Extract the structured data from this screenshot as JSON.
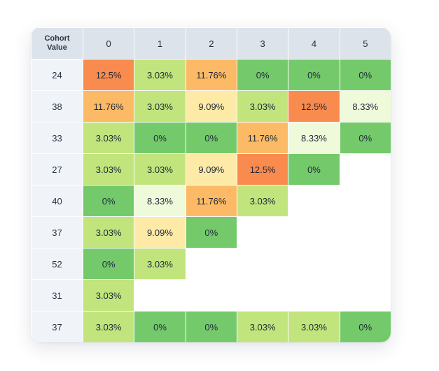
{
  "chart_data": {
    "type": "heatmap",
    "corner_label": [
      "Cohort",
      "Value"
    ],
    "columns": [
      "0",
      "1",
      "2",
      "3",
      "4",
      "5"
    ],
    "rows": [
      {
        "label": "24",
        "values": [
          "12.5%",
          "3.03%",
          "11.76%",
          "0%",
          "0%",
          "0%"
        ]
      },
      {
        "label": "38",
        "values": [
          "11.76%",
          "3.03%",
          "9.09%",
          "3.03%",
          "12.5%",
          "8.33%"
        ]
      },
      {
        "label": "33",
        "values": [
          "3.03%",
          "0%",
          "0%",
          "11.76%",
          "8.33%",
          "0%"
        ]
      },
      {
        "label": "27",
        "values": [
          "3.03%",
          "3.03%",
          "9.09%",
          "12.5%",
          "0%",
          null
        ]
      },
      {
        "label": "40",
        "values": [
          "0%",
          "8.33%",
          "11.76%",
          "3.03%",
          null,
          null
        ]
      },
      {
        "label": "37",
        "values": [
          "3.03%",
          "9.09%",
          "0%",
          null,
          null,
          null
        ]
      },
      {
        "label": "52",
        "values": [
          "0%",
          "3.03%",
          null,
          null,
          null,
          null
        ]
      },
      {
        "label": "31",
        "values": [
          "3.03%",
          null,
          null,
          null,
          null,
          null
        ]
      },
      {
        "label": "37",
        "values": [
          "3.03%",
          "0%",
          "0%",
          "3.03%",
          "3.03%",
          "0%"
        ]
      }
    ],
    "color_scale": {
      "0%": "#74c96b",
      "3.03%": "#c2e47d",
      "8.33%": "#eefad9",
      "9.09%": "#fdeaa6",
      "11.76%": "#fcba66",
      "12.5%": "#f98b4e"
    }
  }
}
